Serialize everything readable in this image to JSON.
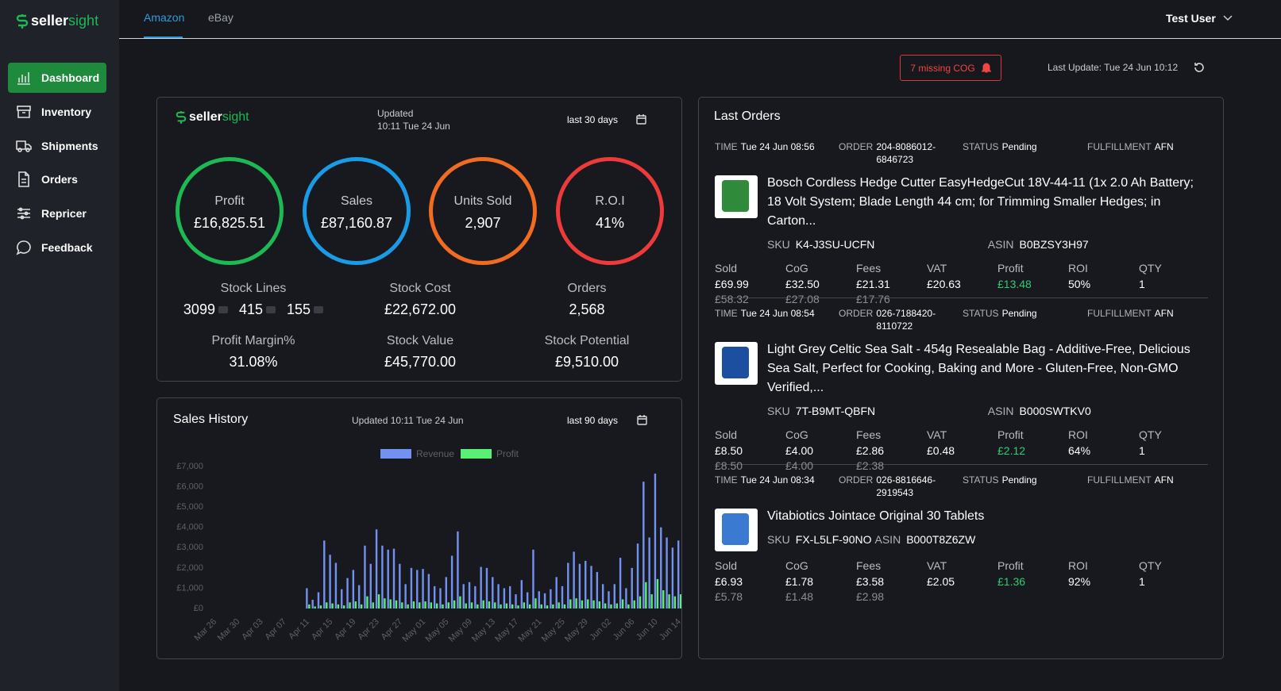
{
  "brand": {
    "bold": "seller",
    "light": "sight"
  },
  "header": {
    "tabs": [
      "Amazon",
      "eBay"
    ],
    "user": "Test User",
    "alert": "7 missing COG",
    "last_update": "Last Update: Tue 24 Jun 10:12"
  },
  "nav": [
    "Dashboard",
    "Inventory",
    "Shipments",
    "Orders",
    "Repricer",
    "Feedback"
  ],
  "summary": {
    "updated": "Updated",
    "updated_time": "10:11 Tue 24 Jun",
    "range": "last 30 days",
    "rings": [
      {
        "label": "Profit",
        "value": "£16,825.51"
      },
      {
        "label": "Sales",
        "value": "£87,160.87"
      },
      {
        "label": "Units Sold",
        "value": "2,907"
      },
      {
        "label": "R.O.I",
        "value": "41%"
      }
    ],
    "stock_lines": {
      "label": "Stock Lines",
      "values": [
        "3099",
        "415",
        "155"
      ]
    },
    "stats": [
      {
        "label": "Stock Cost",
        "value": "£22,672.00"
      },
      {
        "label": "Orders",
        "value": "2,568"
      },
      {
        "label": "Profit Margin%",
        "value": "31.08%"
      },
      {
        "label": "Stock Value",
        "value": "£45,770.00"
      },
      {
        "label": "Stock Potential",
        "value": "£9,510.00"
      }
    ]
  },
  "chart_data": {
    "type": "bar",
    "title": "Sales History",
    "subtitle": "Updated 10:11 Tue 24 Jun",
    "range": "last 90 days",
    "categories": [
      "Mar 26",
      null,
      null,
      null,
      "Mar 30",
      null,
      null,
      null,
      "Apr 03",
      null,
      null,
      null,
      "Apr 07",
      null,
      null,
      null,
      "Apr 11",
      null,
      null,
      null,
      "Apr 15",
      null,
      null,
      null,
      "Apr 19",
      null,
      null,
      null,
      "Apr 23",
      null,
      null,
      null,
      "Apr 27",
      null,
      null,
      null,
      "May 01",
      null,
      null,
      null,
      "May 05",
      null,
      null,
      null,
      "May 09",
      null,
      null,
      null,
      "May 13",
      null,
      null,
      null,
      "May 17",
      null,
      null,
      null,
      "May 21",
      null,
      null,
      null,
      "May 25",
      null,
      null,
      null,
      "May 29",
      null,
      null,
      null,
      "Jun 02",
      null,
      null,
      null,
      "Jun 06",
      null,
      null,
      null,
      "Jun 10",
      null,
      null,
      null,
      "Jun 14",
      null
    ],
    "series": [
      {
        "name": "Revenue",
        "color": "#7391f0",
        "values": [
          0,
          0,
          0,
          0,
          0,
          0,
          0,
          0,
          0,
          0,
          0,
          0,
          0,
          0,
          0,
          0,
          1000,
          430,
          800,
          3350,
          2650,
          2250,
          950,
          1500,
          1900,
          1150,
          3100,
          2200,
          3900,
          3100,
          2900,
          2950,
          2200,
          1200,
          2000,
          1900,
          1950,
          1700,
          1100,
          1000,
          1550,
          2600,
          3800,
          1200,
          1300,
          1100,
          2050,
          2000,
          1550,
          1200,
          1000,
          1100,
          700,
          1400,
          800,
          2900,
          850,
          750,
          950,
          1550,
          1100,
          2250,
          2800,
          2200,
          2350,
          2100,
          1800,
          1200,
          850,
          1200,
          2500,
          1000,
          2000,
          3200,
          6250,
          3500,
          6650,
          4000,
          3500,
          3000,
          3350,
          5550
        ]
      },
      {
        "name": "Profit",
        "color": "#5af075",
        "values": [
          0,
          0,
          0,
          0,
          0,
          0,
          0,
          0,
          0,
          0,
          0,
          0,
          0,
          0,
          0,
          0,
          200,
          100,
          150,
          300,
          250,
          200,
          150,
          300,
          350,
          200,
          600,
          300,
          700,
          500,
          450,
          400,
          300,
          200,
          350,
          300,
          350,
          300,
          250,
          200,
          300,
          400,
          600,
          250,
          300,
          200,
          400,
          350,
          300,
          200,
          250,
          200,
          150,
          300,
          200,
          500,
          200,
          150,
          200,
          300,
          200,
          450,
          500,
          400,
          450,
          400,
          350,
          250,
          200,
          250,
          450,
          200,
          400,
          600,
          1300,
          700,
          1450,
          900,
          700,
          600,
          700,
          1100
        ]
      }
    ],
    "ylim": [
      0,
      7000
    ],
    "yticks": [
      {
        "value": 0,
        "label": "£0"
      },
      {
        "value": 1000,
        "label": "£1,000"
      },
      {
        "value": 2000,
        "label": "£2,000"
      },
      {
        "value": 3000,
        "label": "£3,000"
      },
      {
        "value": 4000,
        "label": "£4,000"
      },
      {
        "value": 5000,
        "label": "£5,000"
      },
      {
        "value": 6000,
        "label": "£6,000"
      },
      {
        "value": 7000,
        "label": "£7,000"
      }
    ],
    "grid": false
  },
  "orders": {
    "title": "Last Orders",
    "labels": {
      "time": "TIME",
      "order": "ORDER",
      "status": "STATUS",
      "fulfillment": "FULFILLMENT",
      "sku": "SKU",
      "asin": "ASIN",
      "sold": "Sold",
      "cog": "CoG",
      "fees": "Fees",
      "vat": "VAT",
      "profit": "Profit",
      "roi": "ROI",
      "qty": "QTY"
    },
    "items": [
      {
        "time": "Tue 24 Jun 08:56",
        "order": "204-8086012-6846723",
        "status": "Pending",
        "fulfillment": "AFN",
        "title": "Bosch Cordless Hedge Cutter EasyHedgeCut 18V-44-11 (1x 2.0 Ah Battery; 18 Volt System; Blade Length 44 cm; for Trimming Smaller Hedges; in Carton...",
        "sku": "K4-J3SU-UCFN",
        "asin": "B0BZSY3H97",
        "sold": [
          "£69.99",
          "£58.32"
        ],
        "cog": [
          "£32.50",
          "£27.08"
        ],
        "fees": [
          "£21.31",
          "£17.76"
        ],
        "vat": [
          "£20.63"
        ],
        "profit": [
          "£13.48"
        ],
        "roi": [
          "50%"
        ],
        "qty": [
          "1"
        ]
      },
      {
        "time": "Tue 24 Jun 08:54",
        "order": "026-7188420-8110722",
        "status": "Pending",
        "fulfillment": "AFN",
        "title": "Light Grey Celtic Sea Salt - 454g Resealable Bag - Additive-Free, Delicious Sea Salt, Perfect for Cooking, Baking and More - Gluten-Free, Non-GMO Verified,...",
        "sku": "7T-B9MT-QBFN",
        "asin": "B000SWTKV0",
        "sold": [
          "£8.50",
          "£8.50"
        ],
        "cog": [
          "£4.00",
          "£4.00"
        ],
        "fees": [
          "£2.86",
          "£2.38"
        ],
        "vat": [
          "£0.48"
        ],
        "profit": [
          "£2.12"
        ],
        "roi": [
          "64%"
        ],
        "qty": [
          "1"
        ]
      },
      {
        "time": "Tue 24 Jun 08:34",
        "order": "026-8816646-2919543",
        "status": "Pending",
        "fulfillment": "AFN",
        "title": "Vitabiotics Jointace Original 30 Tablets",
        "sku": "FX-L5LF-90NO",
        "asin": "B000T8Z6ZW",
        "sold": [
          "£6.93",
          "£5.78"
        ],
        "cog": [
          "£1.78",
          "£1.48"
        ],
        "fees": [
          "£3.58",
          "£2.98"
        ],
        "vat": [
          "£2.05"
        ],
        "profit": [
          "£1.36"
        ],
        "roi": [
          "92%"
        ],
        "qty": [
          "1"
        ]
      }
    ]
  }
}
